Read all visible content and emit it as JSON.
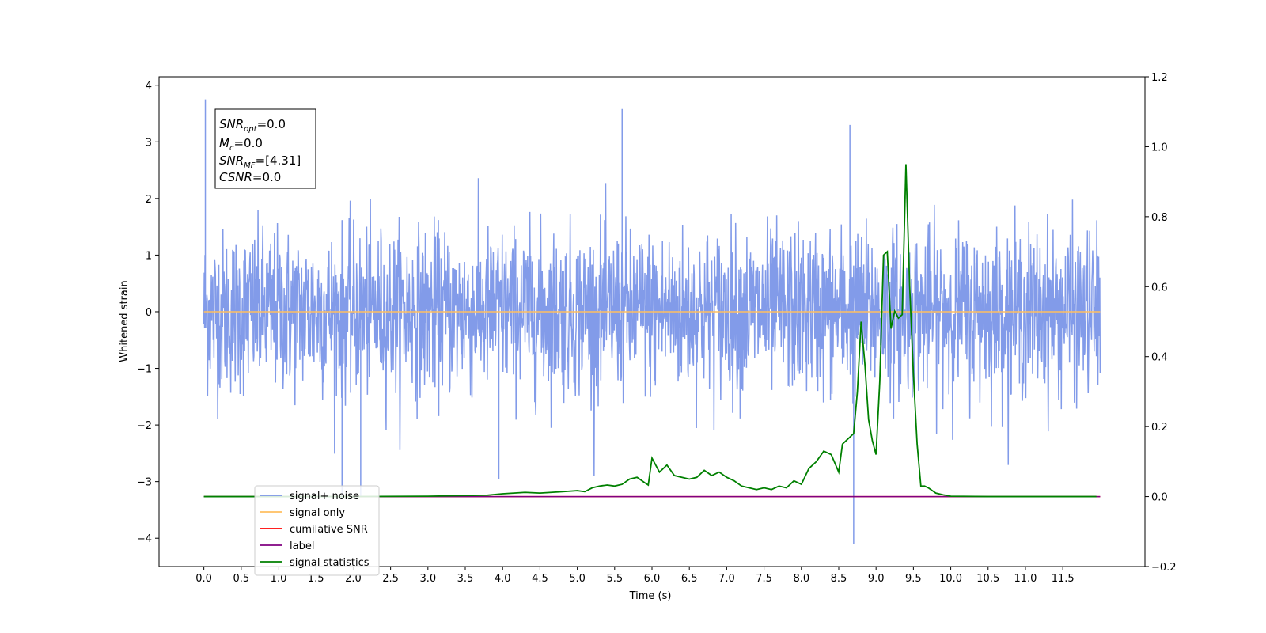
{
  "chart_data": {
    "type": "line",
    "xlabel": "Time (s)",
    "ylabel": "Whitened strain",
    "xlim": [
      -0.6,
      12.6
    ],
    "ylim": [
      -4.5,
      4.15
    ],
    "y2lim": [
      -0.2,
      1.2
    ],
    "x_ticks": [
      "0.0",
      "0.5",
      "1.0",
      "1.5",
      "2.0",
      "2.5",
      "3.0",
      "3.5",
      "4.0",
      "4.5",
      "5.0",
      "5.5",
      "6.0",
      "6.5",
      "7.0",
      "7.5",
      "8.0",
      "8.5",
      "9.0",
      "9.5",
      "10.0",
      "10.5",
      "11.0",
      "11.5"
    ],
    "y_ticks": [
      "4",
      "3",
      "2",
      "1",
      "0",
      "−1",
      "−2",
      "−3",
      "−4"
    ],
    "y2_ticks": [
      "1.2",
      "1.0",
      "0.8",
      "0.6",
      "0.4",
      "0.2",
      "0.0",
      "−0.2"
    ],
    "annotation": {
      "snr_opt": {
        "main": "SNR",
        "sub": "opt",
        "value": "=0.0"
      },
      "mc": {
        "main": "M",
        "sub": "c",
        "value": "=0.0"
      },
      "snr_mf": {
        "main": "SNR",
        "sub": "MF",
        "value": "=[4.31]"
      },
      "csnr": {
        "main": "CSNR",
        "value": "=0.0"
      }
    },
    "series": [
      {
        "name": "signal+ noise",
        "axis": "left",
        "color": "#7b96e8",
        "description": "whitened strain noise, roughly +/-1 sigma band with spikes",
        "x_range": [
          0.0,
          12.0
        ],
        "band": [
          -1.1,
          1.1
        ],
        "max_peak": 3.75,
        "min_peak": -4.1,
        "notable_spikes": [
          [
            0.02,
            3.75
          ],
          [
            5.6,
            3.58
          ],
          [
            8.65,
            3.3
          ],
          [
            8.7,
            -4.1
          ],
          [
            1.85,
            -3.3
          ],
          [
            2.1,
            -3.25
          ],
          [
            3.95,
            -2.95
          ]
        ]
      },
      {
        "name": "signal only",
        "axis": "left",
        "color": "#ffbf60",
        "x": [
          0.0,
          12.0
        ],
        "y": [
          0.0,
          0.0
        ]
      },
      {
        "name": "cumilative SNR",
        "axis": "right",
        "color": "#ff0000",
        "x": [
          0.0,
          12.0
        ],
        "y": [
          0.0,
          0.0
        ]
      },
      {
        "name": "label",
        "axis": "right",
        "color": "#800080",
        "x": [
          0.0,
          12.0
        ],
        "y": [
          0.0,
          0.0
        ]
      },
      {
        "name": "signal statistics",
        "axis": "right",
        "color": "#008000",
        "x": [
          0.0,
          1.0,
          2.0,
          3.0,
          3.5,
          3.8,
          4.0,
          4.3,
          4.5,
          4.8,
          5.0,
          5.1,
          5.2,
          5.3,
          5.4,
          5.5,
          5.6,
          5.7,
          5.8,
          5.9,
          5.95,
          6.0,
          6.1,
          6.2,
          6.3,
          6.4,
          6.5,
          6.6,
          6.7,
          6.8,
          6.9,
          7.0,
          7.1,
          7.2,
          7.3,
          7.4,
          7.5,
          7.6,
          7.7,
          7.8,
          7.9,
          8.0,
          8.1,
          8.2,
          8.3,
          8.4,
          8.5,
          8.55,
          8.6,
          8.7,
          8.75,
          8.8,
          8.85,
          8.9,
          8.95,
          9.0,
          9.05,
          9.1,
          9.15,
          9.2,
          9.25,
          9.3,
          9.35,
          9.4,
          9.45,
          9.5,
          9.55,
          9.6,
          9.65,
          9.7,
          9.8,
          9.9,
          10.0,
          10.5,
          11.0,
          11.5,
          11.95
        ],
        "y": [
          0.0,
          0.0,
          0.0,
          0.001,
          0.003,
          0.004,
          0.008,
          0.012,
          0.01,
          0.014,
          0.017,
          0.014,
          0.025,
          0.03,
          0.033,
          0.03,
          0.035,
          0.05,
          0.055,
          0.04,
          0.033,
          0.11,
          0.07,
          0.09,
          0.06,
          0.055,
          0.05,
          0.055,
          0.075,
          0.06,
          0.07,
          0.055,
          0.045,
          0.03,
          0.025,
          0.02,
          0.025,
          0.02,
          0.03,
          0.025,
          0.045,
          0.035,
          0.08,
          0.1,
          0.13,
          0.12,
          0.07,
          0.15,
          0.16,
          0.18,
          0.3,
          0.5,
          0.38,
          0.22,
          0.16,
          0.12,
          0.33,
          0.69,
          0.7,
          0.48,
          0.53,
          0.51,
          0.52,
          0.95,
          0.6,
          0.35,
          0.15,
          0.03,
          0.03,
          0.025,
          0.01,
          0.005,
          0.001,
          0.0,
          0.0,
          0.0,
          0.0
        ]
      }
    ],
    "legend": {
      "position": "lower-left",
      "entries": [
        {
          "label": "signal+ noise",
          "color": "#7b96e8"
        },
        {
          "label": "signal only",
          "color": "#ffbf60"
        },
        {
          "label": "cumilative SNR",
          "color": "#ff0000"
        },
        {
          "label": "label",
          "color": "#800080"
        },
        {
          "label": "signal statistics",
          "color": "#008000"
        }
      ]
    }
  }
}
